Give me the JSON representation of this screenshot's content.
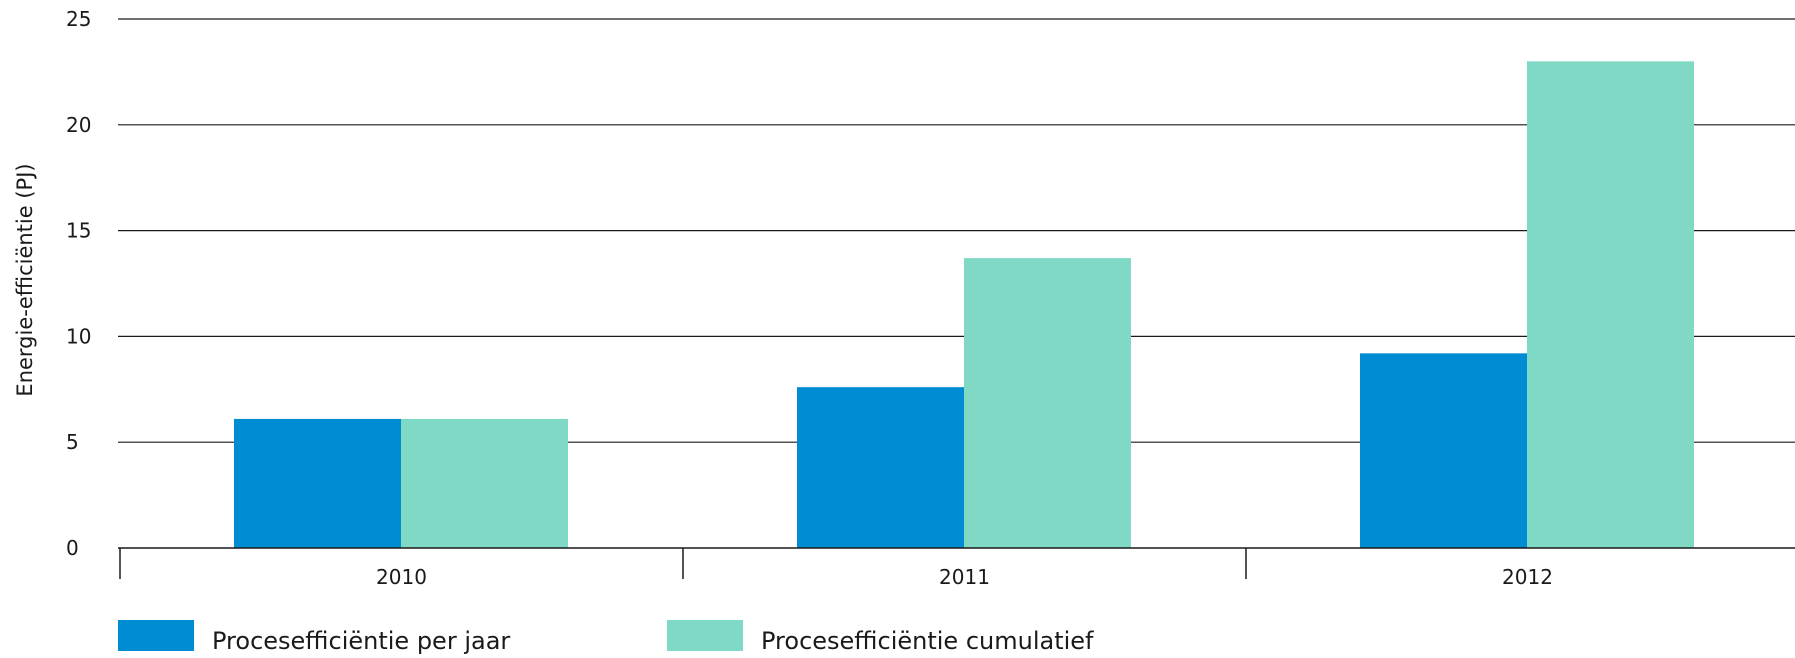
{
  "chart_data": {
    "type": "bar",
    "title": "",
    "xlabel": "",
    "ylabel": "Energie-efficiëntie (PJ)",
    "categories": [
      "2010",
      "2011",
      "2012"
    ],
    "series": [
      {
        "name": "Procesefficiëntie per jaar",
        "values": [
          6.1,
          7.6,
          9.2
        ],
        "color": "#008cd2"
      },
      {
        "name": "Procesefficiëntie cumulatief",
        "values": [
          6.1,
          13.7,
          23.0
        ],
        "color": "#80d9c5"
      }
    ],
    "ylim": [
      0,
      25
    ],
    "yticks": [
      "0",
      "5",
      "10",
      "15",
      "20",
      "25"
    ],
    "grid": true,
    "legend_position": "bottom-left"
  }
}
